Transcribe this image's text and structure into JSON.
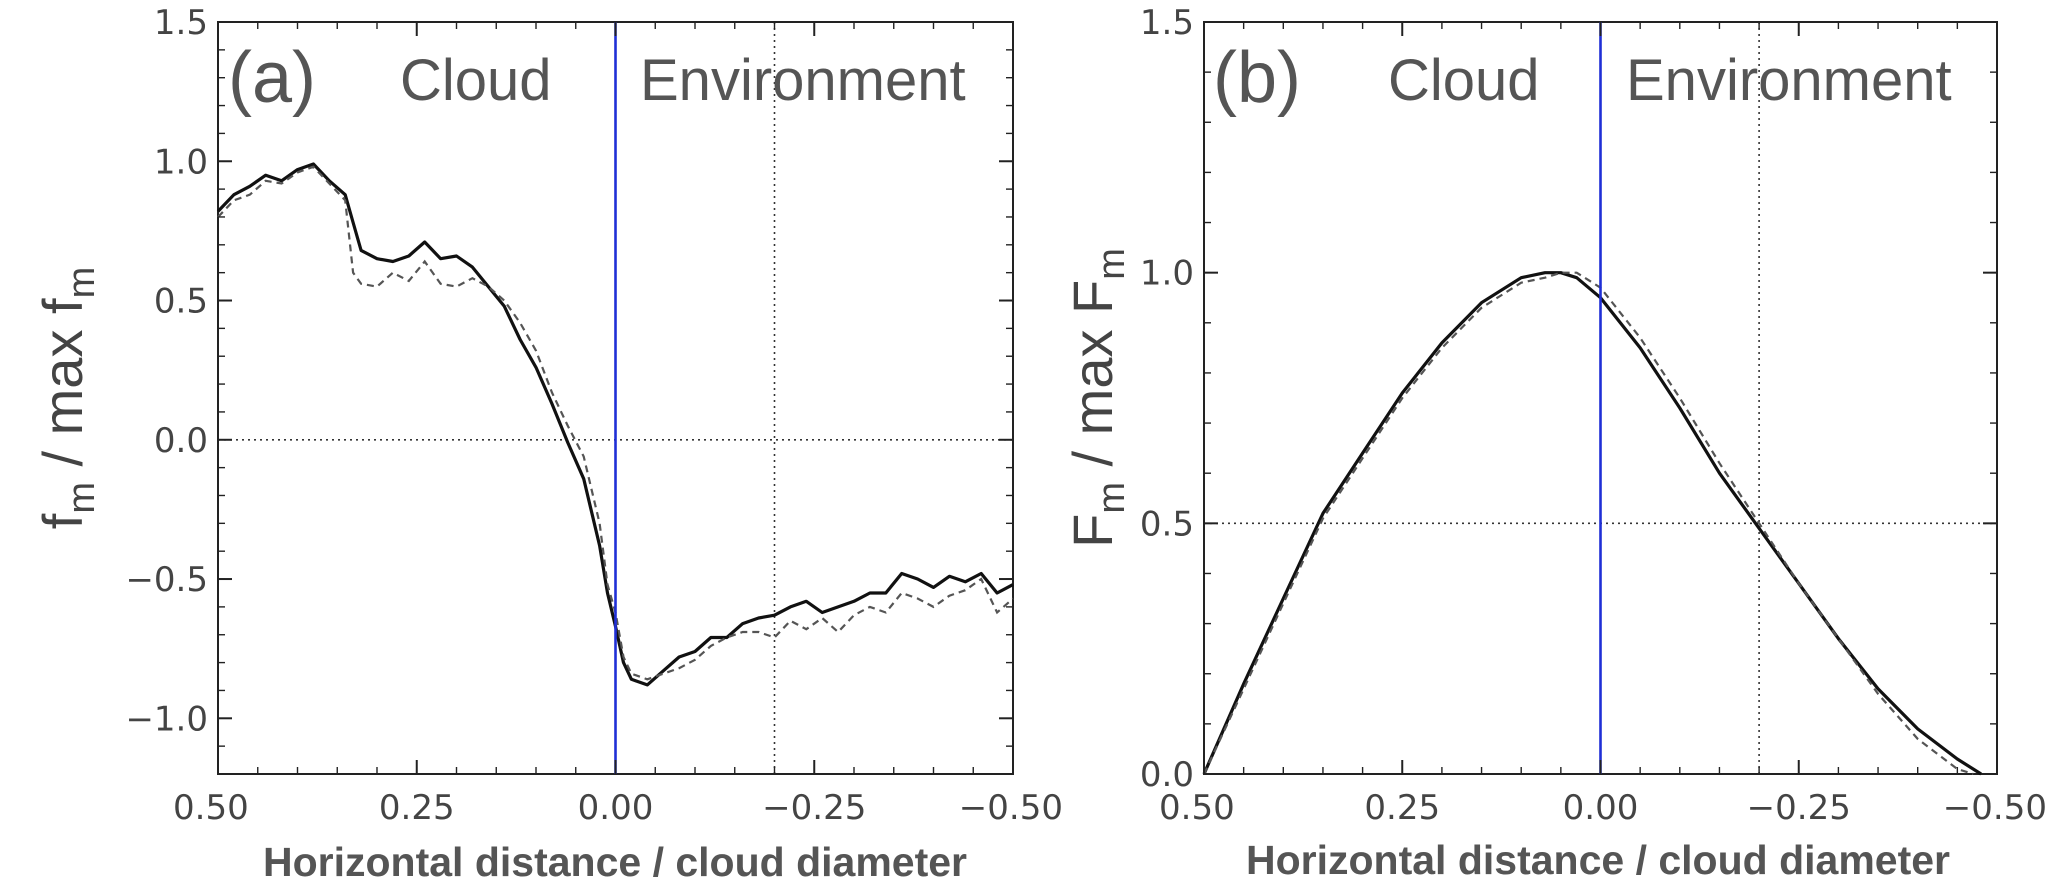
{
  "figure": {
    "xlabel": "Horizontal distance / cloud diameter",
    "region_cloud": "Cloud",
    "region_environment": "Environment"
  },
  "chart_data": [
    {
      "id": "a",
      "type": "line",
      "panel_label": "(a)",
      "ylabel": {
        "main": "f",
        "sub": "m",
        "mid": " / max f",
        "sub2": "m"
      },
      "xlabel": "Horizontal distance / cloud diameter",
      "xlim": [
        0.5,
        -0.5
      ],
      "ylim": [
        -1.2,
        1.5
      ],
      "xticks": [
        0.5,
        0.25,
        0.0,
        -0.25,
        -0.5
      ],
      "xtick_labels": [
        "0.50",
        "0.25",
        "0.00",
        "−0.25",
        "−0.50"
      ],
      "yticks": [
        -1.0,
        -0.5,
        0.0,
        0.5,
        1.0,
        1.5
      ],
      "ytick_labels": [
        "−1.0",
        "−0.5",
        "0.0",
        "0.5",
        "1.0",
        "1.5"
      ],
      "grid": false,
      "reference_lines": {
        "vertical_solid_blue_x": 0.0,
        "vertical_dotted_x": -0.2,
        "horizontal_dotted_y": 0.0
      },
      "series": [
        {
          "style": "solid",
          "x": [
            0.5,
            0.48,
            0.46,
            0.44,
            0.42,
            0.4,
            0.38,
            0.36,
            0.34,
            0.33,
            0.32,
            0.3,
            0.28,
            0.26,
            0.24,
            0.22,
            0.2,
            0.18,
            0.16,
            0.14,
            0.12,
            0.1,
            0.08,
            0.06,
            0.04,
            0.02,
            0.01,
            0.0,
            -0.01,
            -0.02,
            -0.04,
            -0.06,
            -0.08,
            -0.1,
            -0.12,
            -0.14,
            -0.16,
            -0.18,
            -0.2,
            -0.22,
            -0.24,
            -0.26,
            -0.28,
            -0.3,
            -0.32,
            -0.34,
            -0.36,
            -0.38,
            -0.4,
            -0.42,
            -0.44,
            -0.46,
            -0.48,
            -0.5
          ],
          "y": [
            0.82,
            0.88,
            0.91,
            0.95,
            0.93,
            0.97,
            0.99,
            0.93,
            0.88,
            0.78,
            0.68,
            0.65,
            0.64,
            0.66,
            0.71,
            0.65,
            0.66,
            0.62,
            0.55,
            0.48,
            0.36,
            0.26,
            0.13,
            -0.01,
            -0.14,
            -0.38,
            -0.55,
            -0.67,
            -0.8,
            -0.86,
            -0.88,
            -0.83,
            -0.78,
            -0.76,
            -0.71,
            -0.71,
            -0.66,
            -0.64,
            -0.63,
            -0.6,
            -0.58,
            -0.62,
            -0.6,
            -0.58,
            -0.55,
            -0.55,
            -0.48,
            -0.5,
            -0.53,
            -0.49,
            -0.51,
            -0.48,
            -0.55,
            -0.52
          ]
        },
        {
          "style": "dashed",
          "x": [
            0.5,
            0.48,
            0.46,
            0.44,
            0.42,
            0.4,
            0.38,
            0.36,
            0.34,
            0.33,
            0.32,
            0.3,
            0.28,
            0.26,
            0.24,
            0.22,
            0.2,
            0.18,
            0.16,
            0.14,
            0.12,
            0.1,
            0.08,
            0.06,
            0.04,
            0.02,
            0.01,
            0.0,
            -0.01,
            -0.02,
            -0.04,
            -0.06,
            -0.08,
            -0.1,
            -0.12,
            -0.14,
            -0.16,
            -0.18,
            -0.2,
            -0.22,
            -0.24,
            -0.26,
            -0.28,
            -0.3,
            -0.32,
            -0.34,
            -0.36,
            -0.38,
            -0.4,
            -0.42,
            -0.44,
            -0.46,
            -0.48,
            -0.5
          ],
          "y": [
            0.8,
            0.86,
            0.88,
            0.93,
            0.92,
            0.96,
            0.98,
            0.92,
            0.86,
            0.6,
            0.56,
            0.55,
            0.6,
            0.57,
            0.64,
            0.56,
            0.55,
            0.58,
            0.55,
            0.5,
            0.42,
            0.32,
            0.17,
            0.05,
            -0.06,
            -0.3,
            -0.52,
            -0.62,
            -0.78,
            -0.84,
            -0.86,
            -0.84,
            -0.82,
            -0.79,
            -0.74,
            -0.71,
            -0.69,
            -0.69,
            -0.71,
            -0.65,
            -0.68,
            -0.64,
            -0.69,
            -0.63,
            -0.6,
            -0.62,
            -0.55,
            -0.57,
            -0.6,
            -0.56,
            -0.54,
            -0.5,
            -0.62,
            -0.57
          ]
        }
      ]
    },
    {
      "id": "b",
      "type": "line",
      "panel_label": "(b)",
      "ylabel": {
        "main": "F",
        "sub": "m",
        "mid": " / max F",
        "sub2": "m"
      },
      "xlabel": "Horizontal distance / cloud diameter",
      "xlim": [
        0.5,
        -0.5
      ],
      "ylim": [
        0.0,
        1.5
      ],
      "xticks": [
        0.5,
        0.25,
        0.0,
        -0.25,
        -0.5
      ],
      "xtick_labels": [
        "0.50",
        "0.25",
        "0.00",
        "−0.25",
        "−0.50"
      ],
      "yticks": [
        0.0,
        0.5,
        1.0,
        1.5
      ],
      "ytick_labels": [
        "0.0",
        "0.5",
        "1.0",
        "1.5"
      ],
      "grid": false,
      "reference_lines": {
        "vertical_solid_blue_x": 0.0,
        "vertical_dotted_x": -0.2,
        "horizontal_dotted_y": 0.5
      },
      "series": [
        {
          "style": "solid",
          "x": [
            0.5,
            0.45,
            0.4,
            0.35,
            0.3,
            0.25,
            0.2,
            0.15,
            0.1,
            0.07,
            0.05,
            0.03,
            0.0,
            -0.05,
            -0.1,
            -0.15,
            -0.2,
            -0.25,
            -0.3,
            -0.35,
            -0.4,
            -0.45,
            -0.48
          ],
          "y": [
            0.0,
            0.18,
            0.35,
            0.52,
            0.64,
            0.76,
            0.86,
            0.94,
            0.99,
            1.0,
            1.0,
            0.99,
            0.95,
            0.85,
            0.73,
            0.6,
            0.49,
            0.38,
            0.27,
            0.17,
            0.09,
            0.03,
            0.0
          ]
        },
        {
          "style": "dashed",
          "x": [
            0.5,
            0.45,
            0.4,
            0.35,
            0.3,
            0.25,
            0.2,
            0.15,
            0.1,
            0.07,
            0.05,
            0.03,
            0.0,
            -0.05,
            -0.1,
            -0.15,
            -0.2,
            -0.25,
            -0.3,
            -0.35,
            -0.4,
            -0.45,
            -0.47
          ],
          "y": [
            0.0,
            0.17,
            0.34,
            0.51,
            0.63,
            0.75,
            0.85,
            0.93,
            0.98,
            0.99,
            1.0,
            1.0,
            0.97,
            0.87,
            0.75,
            0.62,
            0.5,
            0.38,
            0.27,
            0.16,
            0.07,
            0.01,
            0.0
          ]
        }
      ]
    }
  ]
}
